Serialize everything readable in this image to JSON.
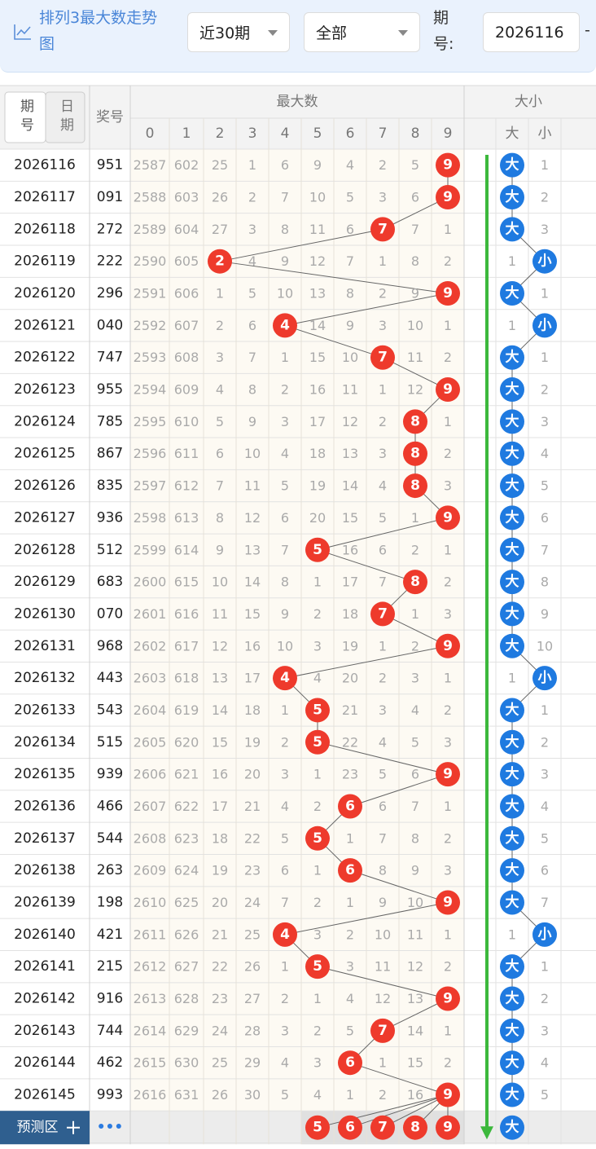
{
  "header": {
    "title": "排列3最大数走势图",
    "range": "近30期",
    "filter": "全部",
    "issue_label": "期号:",
    "issue": "2026116",
    "dash": "-"
  },
  "table": {
    "head": {
      "issue_tab": "期号",
      "date_tab": "日期",
      "number": "奖号",
      "max_group": "最大数",
      "digits": [
        0,
        1,
        2,
        3,
        4,
        5,
        6,
        7,
        8,
        9
      ],
      "size_group": "大小",
      "big": "大",
      "small": "小"
    },
    "rows": [
      {
        "issue": "2026116",
        "number": "951",
        "cells": [
          2587,
          602,
          25,
          1,
          6,
          9,
          4,
          2,
          5,
          9
        ],
        "size": [
          "大",
          1
        ]
      },
      {
        "issue": "2026117",
        "number": "091",
        "cells": [
          2588,
          603,
          26,
          2,
          7,
          10,
          5,
          3,
          6,
          9
        ],
        "size": [
          "大",
          2
        ]
      },
      {
        "issue": "2026118",
        "number": "272",
        "cells": [
          2589,
          604,
          27,
          3,
          8,
          11,
          6,
          7,
          7,
          1
        ],
        "size": [
          "大",
          3
        ]
      },
      {
        "issue": "2026119",
        "number": "222",
        "cells": [
          2590,
          605,
          2,
          4,
          9,
          12,
          7,
          1,
          8,
          2
        ],
        "size": [
          1,
          "小"
        ]
      },
      {
        "issue": "2026120",
        "number": "296",
        "cells": [
          2591,
          606,
          1,
          5,
          10,
          13,
          8,
          2,
          9,
          9
        ],
        "size": [
          "大",
          1
        ]
      },
      {
        "issue": "2026121",
        "number": "040",
        "cells": [
          2592,
          607,
          2,
          6,
          4,
          14,
          9,
          3,
          10,
          1
        ],
        "size": [
          1,
          "小"
        ]
      },
      {
        "issue": "2026122",
        "number": "747",
        "cells": [
          2593,
          608,
          3,
          7,
          1,
          15,
          10,
          7,
          11,
          2
        ],
        "size": [
          "大",
          1
        ]
      },
      {
        "issue": "2026123",
        "number": "955",
        "cells": [
          2594,
          609,
          4,
          8,
          2,
          16,
          11,
          1,
          12,
          9
        ],
        "size": [
          "大",
          2
        ]
      },
      {
        "issue": "2026124",
        "number": "785",
        "cells": [
          2595,
          610,
          5,
          9,
          3,
          17,
          12,
          2,
          8,
          1
        ],
        "size": [
          "大",
          3
        ]
      },
      {
        "issue": "2026125",
        "number": "867",
        "cells": [
          2596,
          611,
          6,
          10,
          4,
          18,
          13,
          3,
          8,
          2
        ],
        "size": [
          "大",
          4
        ]
      },
      {
        "issue": "2026126",
        "number": "835",
        "cells": [
          2597,
          612,
          7,
          11,
          5,
          19,
          14,
          4,
          8,
          3
        ],
        "size": [
          "大",
          5
        ]
      },
      {
        "issue": "2026127",
        "number": "936",
        "cells": [
          2598,
          613,
          8,
          12,
          6,
          20,
          15,
          5,
          1,
          9
        ],
        "size": [
          "大",
          6
        ]
      },
      {
        "issue": "2026128",
        "number": "512",
        "cells": [
          2599,
          614,
          9,
          13,
          7,
          5,
          16,
          6,
          2,
          1
        ],
        "size": [
          "大",
          7
        ]
      },
      {
        "issue": "2026129",
        "number": "683",
        "cells": [
          2600,
          615,
          10,
          14,
          8,
          1,
          17,
          7,
          8,
          2
        ],
        "size": [
          "大",
          8
        ]
      },
      {
        "issue": "2026130",
        "number": "070",
        "cells": [
          2601,
          616,
          11,
          15,
          9,
          2,
          18,
          7,
          1,
          3
        ],
        "size": [
          "大",
          9
        ]
      },
      {
        "issue": "2026131",
        "number": "968",
        "cells": [
          2602,
          617,
          12,
          16,
          10,
          3,
          19,
          1,
          2,
          9
        ],
        "size": [
          "大",
          10
        ]
      },
      {
        "issue": "2026132",
        "number": "443",
        "cells": [
          2603,
          618,
          13,
          17,
          4,
          4,
          20,
          2,
          3,
          1
        ],
        "size": [
          1,
          "小"
        ]
      },
      {
        "issue": "2026133",
        "number": "543",
        "cells": [
          2604,
          619,
          14,
          18,
          1,
          5,
          21,
          3,
          4,
          2
        ],
        "size": [
          "大",
          1
        ]
      },
      {
        "issue": "2026134",
        "number": "515",
        "cells": [
          2605,
          620,
          15,
          19,
          2,
          5,
          22,
          4,
          5,
          3
        ],
        "size": [
          "大",
          2
        ]
      },
      {
        "issue": "2026135",
        "number": "939",
        "cells": [
          2606,
          621,
          16,
          20,
          3,
          1,
          23,
          5,
          6,
          9
        ],
        "size": [
          "大",
          3
        ]
      },
      {
        "issue": "2026136",
        "number": "466",
        "cells": [
          2607,
          622,
          17,
          21,
          4,
          2,
          6,
          6,
          7,
          1
        ],
        "size": [
          "大",
          4
        ]
      },
      {
        "issue": "2026137",
        "number": "544",
        "cells": [
          2608,
          623,
          18,
          22,
          5,
          5,
          1,
          7,
          8,
          2
        ],
        "size": [
          "大",
          5
        ]
      },
      {
        "issue": "2026138",
        "number": "263",
        "cells": [
          2609,
          624,
          19,
          23,
          6,
          1,
          6,
          8,
          9,
          3
        ],
        "size": [
          "大",
          6
        ]
      },
      {
        "issue": "2026139",
        "number": "198",
        "cells": [
          2610,
          625,
          20,
          24,
          7,
          2,
          1,
          9,
          10,
          9
        ],
        "size": [
          "大",
          7
        ]
      },
      {
        "issue": "2026140",
        "number": "421",
        "cells": [
          2611,
          626,
          21,
          25,
          4,
          3,
          2,
          10,
          11,
          1
        ],
        "size": [
          1,
          "小"
        ]
      },
      {
        "issue": "2026141",
        "number": "215",
        "cells": [
          2612,
          627,
          22,
          26,
          1,
          5,
          3,
          11,
          12,
          2
        ],
        "size": [
          "大",
          1
        ]
      },
      {
        "issue": "2026142",
        "number": "916",
        "cells": [
          2613,
          628,
          23,
          27,
          2,
          1,
          4,
          12,
          13,
          9
        ],
        "size": [
          "大",
          2
        ]
      },
      {
        "issue": "2026143",
        "number": "744",
        "cells": [
          2614,
          629,
          24,
          28,
          3,
          2,
          5,
          7,
          14,
          1
        ],
        "size": [
          "大",
          3
        ]
      },
      {
        "issue": "2026144",
        "number": "462",
        "cells": [
          2615,
          630,
          25,
          29,
          4,
          3,
          6,
          1,
          15,
          2
        ],
        "size": [
          "大",
          4
        ]
      },
      {
        "issue": "2026145",
        "number": "993",
        "cells": [
          2616,
          631,
          26,
          30,
          5,
          4,
          1,
          2,
          16,
          9
        ],
        "size": [
          "大",
          5
        ]
      }
    ],
    "predict": {
      "label": "预测区",
      "more": "•••",
      "digits": [
        5,
        6,
        7,
        8,
        9
      ],
      "size": "大"
    }
  }
}
